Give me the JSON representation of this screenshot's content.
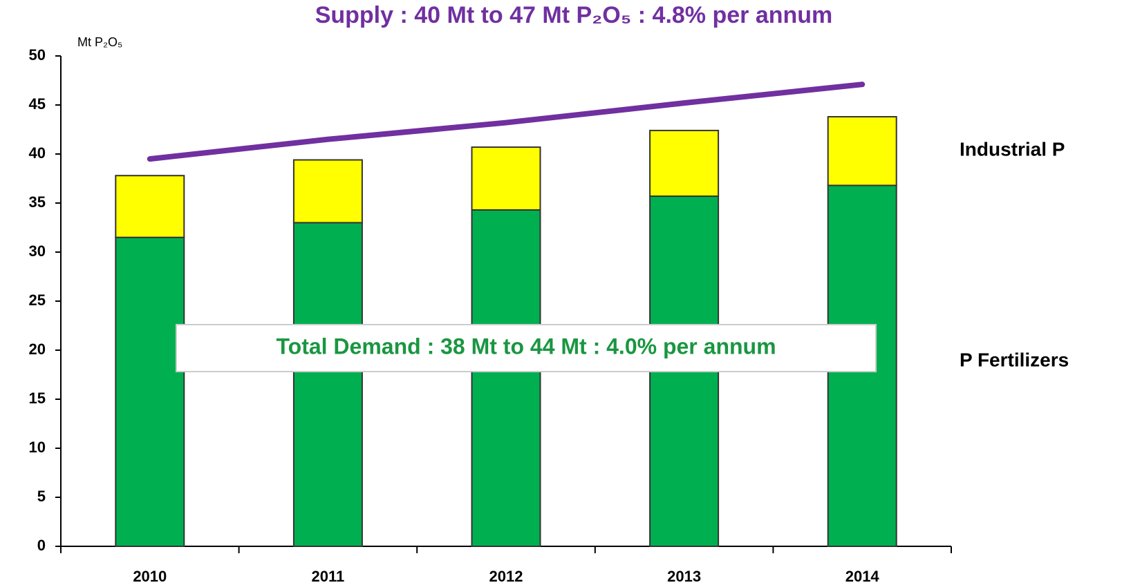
{
  "chart_data": {
    "type": "bar",
    "stacked": true,
    "title": "Supply : 40 Mt to 47 Mt P₂O₅ : 4.8% per annum",
    "ylabel": "Mt P₂O₅",
    "annotation": "Total Demand  : 38 Mt to 44 Mt : 4.0% per annum",
    "categories": [
      "2010",
      "2011",
      "2012",
      "2013",
      "2014"
    ],
    "series": [
      {
        "name": "P Fertilizers",
        "color": "#00b050",
        "values": [
          31.5,
          33,
          34.3,
          35.7,
          36.8
        ]
      },
      {
        "name": "Industrial P",
        "color": "#ffff00",
        "values": [
          6.3,
          6.4,
          6.4,
          6.7,
          7.0
        ]
      }
    ],
    "line": {
      "color": "#7030a0",
      "values": [
        39.5,
        41.5,
        43.2,
        45.2,
        47.1
      ]
    },
    "ylim": [
      0,
      50
    ],
    "yticks": [
      0,
      5,
      10,
      15,
      20,
      25,
      30,
      35,
      40,
      45,
      50
    ]
  }
}
